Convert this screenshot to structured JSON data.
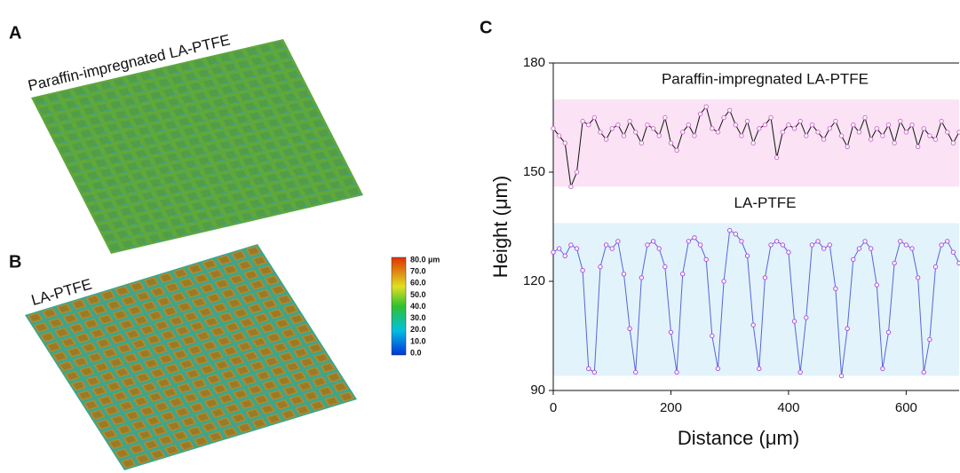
{
  "panels": {
    "a": {
      "label": "A",
      "caption": "Paraffin-impregnated LA-PTFE"
    },
    "b": {
      "label": "B",
      "caption": "LA-PTFE"
    },
    "colorbar": {
      "labels": [
        "80.0 µm",
        "70.0",
        "60.0",
        "50.0",
        "40.0",
        "30.0",
        "20.0",
        "10.0",
        "0.0"
      ]
    }
  },
  "chart_data": {
    "type": "line",
    "panel_label": "C",
    "xlabel": "Distance (μm)",
    "ylabel": "Height (μm)",
    "xlim": [
      0,
      690
    ],
    "ylim": [
      90,
      180
    ],
    "xticks": [
      0,
      200,
      400,
      600
    ],
    "yticks": [
      90,
      120,
      150,
      180
    ],
    "bands": [
      {
        "label": "Paraffin-impregnated LA-PTFE",
        "range": [
          146,
          170
        ],
        "color": "#fbe3f5"
      },
      {
        "label": "LA-PTFE",
        "range": [
          94,
          136
        ],
        "color": "#e3f3fb"
      }
    ],
    "x": [
      0,
      10,
      20,
      30,
      40,
      50,
      60,
      70,
      80,
      90,
      100,
      110,
      120,
      130,
      140,
      150,
      160,
      170,
      180,
      190,
      200,
      210,
      220,
      230,
      240,
      250,
      260,
      270,
      280,
      290,
      300,
      310,
      320,
      330,
      340,
      350,
      360,
      370,
      380,
      390,
      400,
      410,
      420,
      430,
      440,
      450,
      460,
      470,
      480,
      490,
      500,
      510,
      520,
      530,
      540,
      550,
      560,
      570,
      580,
      590,
      600,
      610,
      620,
      630,
      640,
      650,
      660,
      670,
      680,
      690
    ],
    "series": [
      {
        "name": "Paraffin-impregnated LA-PTFE",
        "color": "#111111",
        "marker_color": "#d070d0",
        "values": [
          162,
          160,
          158,
          146,
          150,
          164,
          163,
          165,
          161,
          159,
          162,
          163,
          160,
          164,
          161,
          158,
          163,
          162,
          160,
          165,
          158,
          156,
          161,
          163,
          160,
          166,
          168,
          162,
          161,
          165,
          167,
          163,
          160,
          164,
          158,
          162,
          163,
          165,
          154,
          161,
          163,
          162,
          164,
          160,
          163,
          161,
          159,
          162,
          164,
          160,
          157,
          163,
          161,
          165,
          159,
          162,
          160,
          163,
          158,
          164,
          161,
          163,
          157,
          162,
          160,
          159,
          164,
          161,
          158,
          161
        ]
      },
      {
        "name": "LA-PTFE",
        "color": "#5566d8",
        "marker_color": "#b050e0",
        "values": [
          128,
          129,
          127,
          130,
          129,
          123,
          96,
          95,
          124,
          130,
          129,
          131,
          122,
          107,
          95,
          121,
          130,
          131,
          129,
          124,
          106,
          95,
          122,
          131,
          132,
          130,
          126,
          105,
          96,
          120,
          134,
          133,
          131,
          127,
          108,
          96,
          121,
          130,
          131,
          130,
          128,
          109,
          95,
          110,
          130,
          131,
          129,
          130,
          118,
          94,
          107,
          126,
          129,
          131,
          129,
          119,
          96,
          106,
          125,
          131,
          130,
          129,
          121,
          95,
          104,
          124,
          130,
          131,
          128,
          125
        ]
      }
    ]
  }
}
